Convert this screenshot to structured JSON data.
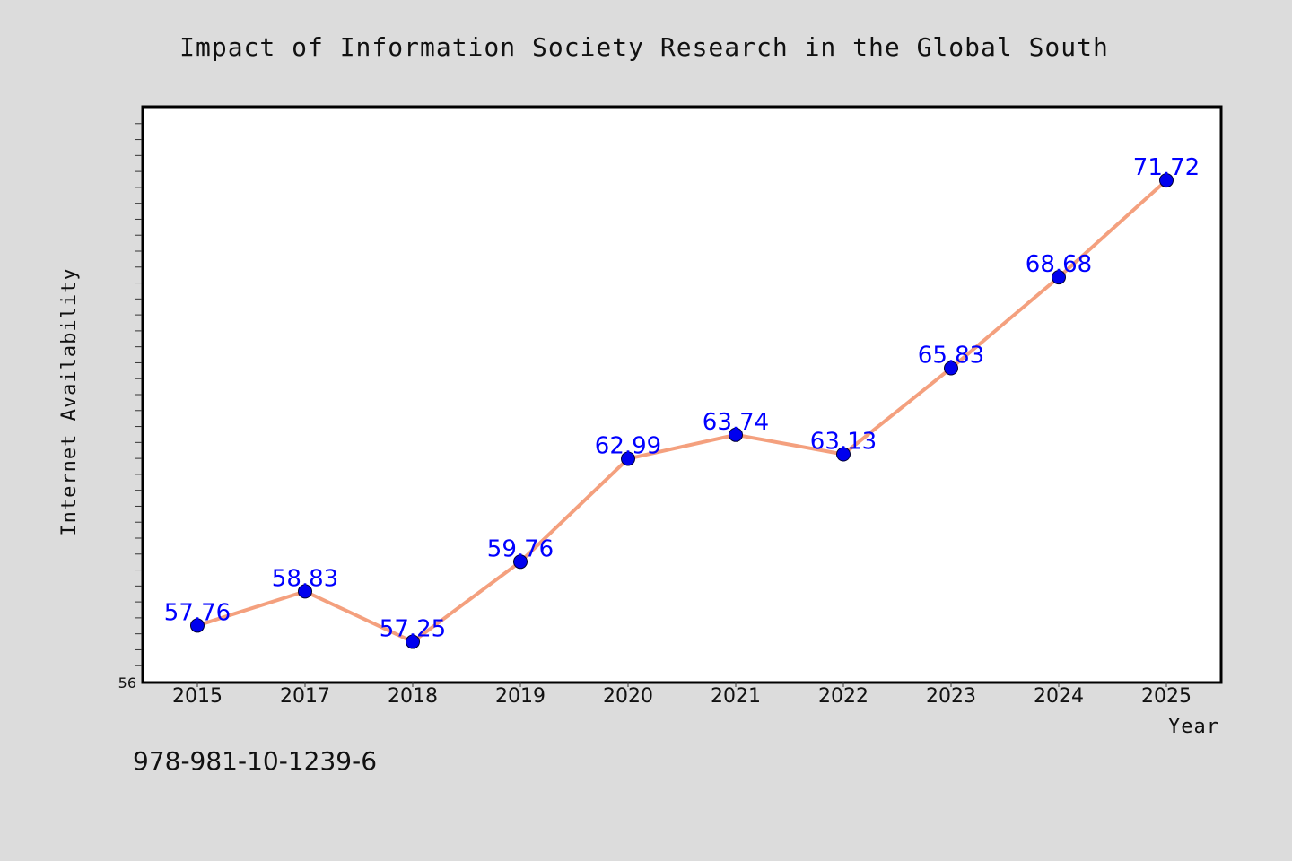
{
  "chart_data": {
    "type": "line",
    "title": "Impact of Information Society Research in the Global South",
    "xlabel": "Year",
    "ylabel": "Internet Availability",
    "categories": [
      "2015",
      "2017",
      "2018",
      "2019",
      "2020",
      "2021",
      "2022",
      "2023",
      "2024",
      "2025"
    ],
    "series": [
      {
        "values": [
          57.76,
          58.83,
          57.25,
          59.76,
          62.99,
          63.74,
          63.13,
          65.83,
          68.68,
          71.72
        ],
        "data_labels": [
          "57.76",
          "58.83",
          "57.25",
          "59.76",
          "62.99",
          "63.74",
          "63.13",
          "65.83",
          "68.68",
          "71.72"
        ]
      }
    ],
    "ylim": [
      56,
      74
    ],
    "y_tick_labels": [
      "56"
    ],
    "grid": false,
    "legend": "none",
    "colors": {
      "line": "#f4a07e",
      "marker": "#0000ee",
      "data_label": "#0000ff",
      "plot_background": "#ffffff",
      "page_background": "#dcdcdc"
    }
  },
  "footer": {
    "isbn": "978-981-10-1239-6"
  }
}
